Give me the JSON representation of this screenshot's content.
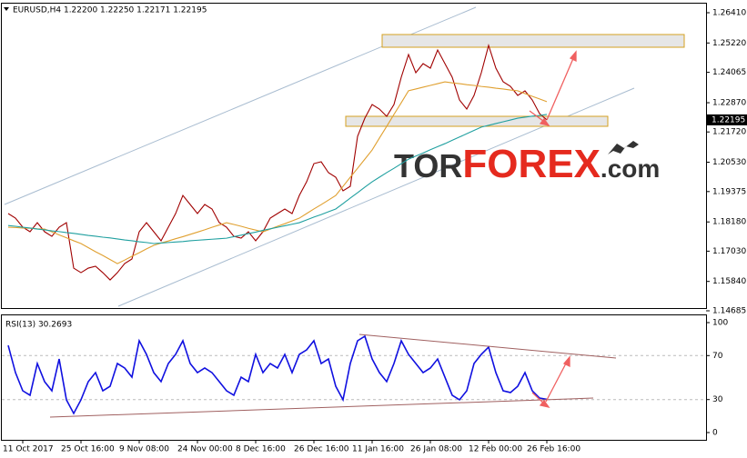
{
  "header": "EURUSD,H4  1.22200 1.22250 1.22171 1.22195",
  "watermark": [
    "TOR",
    "FOREX",
    ".com"
  ],
  "chart_data": [
    {
      "type": "line",
      "categories": [
        null,
        null,
        "11 Oct 2017",
        null,
        null,
        null,
        null,
        null,
        null,
        null,
        "25 Oct 16:00",
        null,
        null,
        null,
        null,
        null,
        null,
        null,
        "9 Nov 08:00",
        null,
        null,
        null,
        null,
        null,
        null,
        null,
        "24 Nov 00:00",
        null,
        null,
        null,
        null,
        null,
        null,
        null,
        "8 Dec 16:00",
        null,
        null,
        null,
        null,
        null,
        null,
        null,
        "26 Dec 16:00",
        null,
        null,
        null,
        null,
        null,
        null,
        null,
        "11 Jan 16:00",
        null,
        null,
        null,
        null,
        null,
        null,
        null,
        "26 Jan 08:00",
        null,
        null,
        null,
        null,
        null,
        null,
        null,
        "12 Feb 00:00",
        null,
        null,
        null,
        null,
        null,
        null,
        null,
        "26 Feb 16:00"
      ],
      "series": [
        {
          "color": "#a00000",
          "values": [
            1.18509,
            1.1833,
            1.17973,
            1.17794,
            1.18152,
            1.17794,
            1.17615,
            1.17973,
            1.18152,
            1.16364,
            1.16185,
            1.16364,
            1.16436,
            1.16185,
            1.15899,
            1.16185,
            1.16543,
            1.16722,
            1.17794,
            1.18152,
            1.17794,
            1.17437,
            1.17973,
            1.18509,
            1.19224,
            1.18867,
            1.18509,
            1.18867,
            1.18688,
            1.18152,
            1.17973,
            1.17615,
            1.17544,
            1.17794,
            1.17437,
            1.17794,
            1.1833,
            1.18509,
            1.18688,
            1.18509,
            1.19224,
            1.1976,
            1.20475,
            1.20547,
            1.20118,
            1.19939,
            1.19403,
            1.19582,
            1.21548,
            1.22263,
            1.22799,
            1.2262,
            1.22334,
            1.22799,
            1.23872,
            1.24765,
            1.2405,
            1.24408,
            1.24229,
            1.24944,
            1.24408,
            1.23872,
            1.22978,
            1.2262,
            1.23157,
            1.2405,
            1.25123,
            1.24229,
            1.23693,
            1.23514,
            1.23157,
            1.23335,
            1.22978,
            1.22442,
            1.22195
          ]
        },
        {
          "color": "#e0a030",
          "values": [
            1.1797,
            1.1796,
            1.1794,
            1.1793,
            1.1791,
            1.179,
            1.1779,
            1.1767,
            1.1756,
            1.1744,
            1.1733,
            1.1717,
            1.1701,
            1.1686,
            1.167,
            1.1654,
            1.1668,
            1.1683,
            1.1697,
            1.1712,
            1.1726,
            1.1735,
            1.1743,
            1.1752,
            1.176,
            1.1769,
            1.1778,
            1.1787,
            1.1797,
            1.1806,
            1.1815,
            1.1808,
            1.1801,
            1.1793,
            1.1786,
            1.1779,
            1.179,
            1.1801,
            1.1811,
            1.1822,
            1.1833,
            1.1851,
            1.1869,
            1.1886,
            1.1904,
            1.1922,
            1.1958,
            1.1994,
            1.2029,
            1.2065,
            1.2101,
            1.2148,
            1.2194,
            1.2241,
            1.2287,
            1.2334,
            1.2341,
            1.2348,
            1.2355,
            1.2362,
            1.2369,
            1.2365,
            1.2362,
            1.2358,
            1.2355,
            1.2351,
            1.2348,
            1.2344,
            1.2341,
            1.2337,
            1.2334,
            1.2323,
            1.2312,
            1.2302,
            1.2291
          ]
        },
        {
          "color": "#20a0a0",
          "values": [
            1.1804,
            1.1801,
            1.1797,
            1.1794,
            1.179,
            1.1787,
            1.1783,
            1.178,
            1.1776,
            1.1773,
            1.1769,
            1.1765,
            1.1762,
            1.1758,
            1.1755,
            1.1751,
            1.1747,
            1.1744,
            1.174,
            1.1737,
            1.1733,
            1.1735,
            1.1737,
            1.1739,
            1.1741,
            1.1744,
            1.1746,
            1.1748,
            1.175,
            1.1752,
            1.1754,
            1.176,
            1.1766,
            1.1772,
            1.1778,
            1.1785,
            1.1791,
            1.1797,
            1.1803,
            1.1809,
            1.1815,
            1.1826,
            1.1837,
            1.1847,
            1.1858,
            1.1869,
            1.189,
            1.1912,
            1.1933,
            1.1955,
            1.1976,
            1.1994,
            1.2012,
            1.2029,
            1.2047,
            1.2065,
            1.2077,
            1.2089,
            1.2102,
            1.2114,
            1.2126,
            1.2139,
            1.2152,
            1.2165,
            1.2178,
            1.2191,
            1.2198,
            1.2205,
            1.2212,
            1.2219,
            1.2226,
            1.223,
            1.2234,
            1.2237,
            1.2241
          ]
        }
      ],
      "last_price": 1.22195,
      "ylim": [
        1.14685,
        1.2641
      ],
      "yticks": [
        {
          "value": 1.2641,
          "label": "1.26410"
        },
        {
          "value": 1.2522,
          "label": "1.25220"
        },
        {
          "value": 1.24065,
          "label": "1.24065"
        },
        {
          "value": 1.2287,
          "label": "1.22870"
        },
        {
          "value": 1.2172,
          "label": "1.21720"
        },
        {
          "value": 1.2053,
          "label": "1.20530"
        },
        {
          "value": 1.19375,
          "label": "1.19375"
        },
        {
          "value": 1.1818,
          "label": "1.18180"
        },
        {
          "value": 1.1703,
          "label": "1.17030"
        },
        {
          "value": 1.1584,
          "label": "1.15840"
        },
        {
          "value": 1.14685,
          "label": "1.14685"
        }
      ],
      "grid": false
    },
    {
      "type": "line",
      "title": "RSI(13) 30.2693",
      "series": [
        {
          "color": "#1010e0",
          "values": [
            79.3,
            54.5,
            38.0,
            33.9,
            62.8,
            46.3,
            38.0,
            66.9,
            29.8,
            17.4,
            29.8,
            46.3,
            54.5,
            38.0,
            42.1,
            62.8,
            58.7,
            50.4,
            83.5,
            71.1,
            54.5,
            46.3,
            62.8,
            71.1,
            83.5,
            62.8,
            54.5,
            58.7,
            54.5,
            46.3,
            38.0,
            33.9,
            50.4,
            46.3,
            71.1,
            54.5,
            62.8,
            58.7,
            71.1,
            54.5,
            71.1,
            75.2,
            83.5,
            62.8,
            66.9,
            42.1,
            29.8,
            62.8,
            83.5,
            87.6,
            66.9,
            54.5,
            46.3,
            62.8,
            83.5,
            71.1,
            62.8,
            54.5,
            58.7,
            66.9,
            50.4,
            33.9,
            29.8,
            38.0,
            62.8,
            71.1,
            77.7,
            54.5,
            38.0,
            36.4,
            42.1,
            54.5,
            38.0,
            31.4,
            30.2693
          ]
        }
      ],
      "ylim": [
        0,
        100
      ],
      "yticks": [
        100,
        70,
        30,
        0
      ],
      "levels": [
        70,
        30
      ]
    }
  ]
}
